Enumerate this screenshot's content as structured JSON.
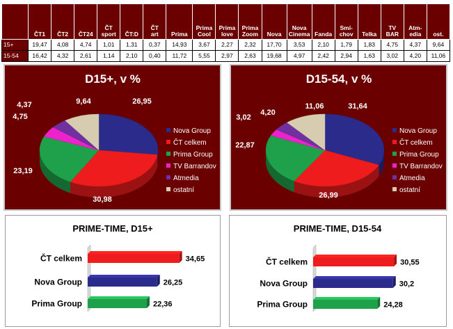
{
  "table": {
    "columns": [
      "ČT1",
      "ČT2",
      "ČT24",
      "ČT sport",
      "ČT:D ČT art",
      "ČT art",
      "Prima",
      "Prima Cool",
      "Prima love",
      "Prima Zoom",
      "Nova",
      "Nova Cinema",
      "Fanda",
      "Smí-chov",
      "Telka",
      "TV BAR",
      "Atm-edia",
      "ost."
    ],
    "header_lines": [
      [
        "",
        "ČT1"
      ],
      [
        "",
        "ČT2"
      ],
      [
        "",
        "ČT24"
      ],
      [
        "ČT",
        "sport"
      ],
      [
        "",
        "ČT:D"
      ],
      [
        "ČT",
        "art"
      ],
      [
        "",
        "Prima"
      ],
      [
        "Prima",
        "Cool"
      ],
      [
        "Prima",
        "love"
      ],
      [
        "Prima",
        "Zoom"
      ],
      [
        "",
        "Nova"
      ],
      [
        "Nova",
        "Cinema"
      ],
      [
        "",
        "Fanda"
      ],
      [
        "Smí-",
        "chov"
      ],
      [
        "",
        "Telka"
      ],
      [
        "TV",
        "BAR"
      ],
      [
        "Atm-",
        "edia"
      ],
      [
        "",
        "ost."
      ]
    ],
    "rows": [
      {
        "label": "15+",
        "values": [
          "19,47",
          "4,08",
          "4,74",
          "1,01",
          "1,31",
          "0,37",
          "14,93",
          "3,67",
          "2,27",
          "2,32",
          "17,70",
          "3,53",
          "2,10",
          "1,79",
          "1,83",
          "4,75",
          "4,37",
          "9,64"
        ]
      },
      {
        "label": "15-54",
        "values": [
          "16,42",
          "4,32",
          "2,61",
          "1,14",
          "2,10",
          "0,40",
          "11,72",
          "5,55",
          "2,97",
          "2,63",
          "19,68",
          "4,97",
          "2,42",
          "2,94",
          "1,63",
          "3,02",
          "4,20",
          "11,06"
        ]
      }
    ]
  },
  "colors": {
    "panel_bg": "#6b0000",
    "nova": "#2b2b8c",
    "ct": "#ee1c1c",
    "prima": "#1fa04a",
    "barrandov": "#ee22cc",
    "atmedia": "#7030a0",
    "ostatni": "#d8ccb0"
  },
  "chart_data": [
    {
      "type": "pie",
      "title": "D15+, v %",
      "legend": "right",
      "slices": [
        {
          "name": "Nova Group",
          "value": 26.95,
          "label": "26,95"
        },
        {
          "name": "ČT celkem",
          "value": 30.98,
          "label": "30,98"
        },
        {
          "name": "Prima Group",
          "value": 23.19,
          "label": "23,19"
        },
        {
          "name": "TV Barrandov",
          "value": 4.75,
          "label": "4,75"
        },
        {
          "name": "Atmedia",
          "value": 4.37,
          "label": "4,37"
        },
        {
          "name": "ostatní",
          "value": 9.64,
          "label": "9,64"
        }
      ]
    },
    {
      "type": "pie",
      "title": "D15-54, v %",
      "legend": "right",
      "slices": [
        {
          "name": "Nova Group",
          "value": 31.64,
          "label": "31,64"
        },
        {
          "name": "ČT celkem",
          "value": 26.99,
          "label": "26,99"
        },
        {
          "name": "Prima Group",
          "value": 22.87,
          "label": "22,87"
        },
        {
          "name": "TV Barrandov",
          "value": 3.02,
          "label": "3,02"
        },
        {
          "name": "Atmedia",
          "value": 4.2,
          "label": "4,20"
        },
        {
          "name": "ostatní",
          "value": 11.06,
          "label": "11,06"
        }
      ]
    },
    {
      "type": "bar",
      "orientation": "horizontal",
      "title": "PRIME-TIME, D15+",
      "categories": [
        "ČT celkem",
        "Nova Group",
        "Prima Group"
      ],
      "values": [
        34.65,
        26.25,
        22.36
      ],
      "value_labels": [
        "34,65",
        "26,25",
        "22,36"
      ],
      "xlim": [
        0,
        40
      ]
    },
    {
      "type": "bar",
      "orientation": "horizontal",
      "title": "PRIME-TIME, D15-54",
      "categories": [
        "ČT celkem",
        "Nova Group",
        "Prima Group"
      ],
      "values": [
        30.55,
        30.2,
        24.28
      ],
      "value_labels": [
        "30,55",
        "30,2",
        "24,28"
      ],
      "xlim": [
        0,
        40
      ]
    }
  ]
}
